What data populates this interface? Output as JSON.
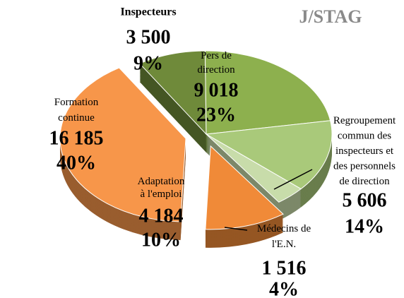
{
  "chart_data": {
    "type": "pie",
    "title": "J/STAG",
    "categories": [
      "Inspecteurs",
      "Pers de\ndirection",
      "Regroupement\ncommun des\ninspecteurs et\ndes personnels\nde direction",
      "Médecins de\nl'E.N.",
      "Adaptation\nà l'emploi",
      "Formation\ncontinue"
    ],
    "values": [
      3500,
      9018,
      5606,
      1516,
      4184,
      16185
    ],
    "value_labels": [
      "3 500",
      "9 018",
      "5 606",
      "1 516",
      "4 184",
      "16 185"
    ],
    "percentages": [
      9,
      23,
      14,
      4,
      10,
      40
    ],
    "percent_labels": [
      "9%",
      "23%",
      "14%",
      "4%",
      "10%",
      "40%"
    ],
    "colors": [
      "#6f8a3a",
      "#8db04e",
      "#a9c97a",
      "#c8dcaa",
      "#f08a38",
      "#f7964a"
    ]
  }
}
